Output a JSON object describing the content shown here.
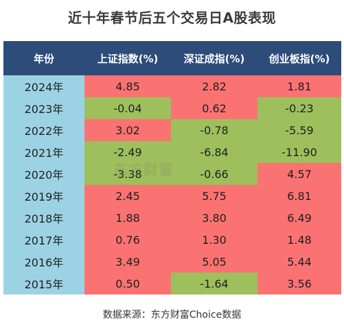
{
  "title": "近十年春节后五个交易日A股表现",
  "watermark": "东方财富",
  "source": "数据来源：东方财富Choice数据",
  "colors": {
    "header": "#2e4c79",
    "year_column": "#9cd3e4",
    "rise": "#fb7272",
    "fall": "#9dc05c"
  },
  "chart_data": {
    "type": "table",
    "columns": [
      "年份",
      "上证指数(%)",
      "深证成指(%)",
      "创业板指(%)"
    ],
    "rows": [
      {
        "year": "2024年",
        "values": [
          "4.85",
          "2.82",
          "1.81"
        ]
      },
      {
        "year": "2023年",
        "values": [
          "-0.04",
          "0.62",
          "-0.23"
        ]
      },
      {
        "year": "2022年",
        "values": [
          "3.02",
          "-0.78",
          "-5.59"
        ]
      },
      {
        "year": "2021年",
        "values": [
          "-2.49",
          "-6.84",
          "-11.90"
        ]
      },
      {
        "year": "2020年",
        "values": [
          "-3.38",
          "-0.66",
          "4.57"
        ]
      },
      {
        "year": "2019年",
        "values": [
          "2.45",
          "5.75",
          "6.81"
        ]
      },
      {
        "year": "2018年",
        "values": [
          "1.88",
          "3.80",
          "6.49"
        ]
      },
      {
        "year": "2017年",
        "values": [
          "0.76",
          "1.30",
          "1.48"
        ]
      },
      {
        "year": "2016年",
        "values": [
          "3.49",
          "5.05",
          "5.44"
        ]
      },
      {
        "year": "2015年",
        "values": [
          "0.50",
          "-1.64",
          "3.56"
        ]
      }
    ]
  }
}
